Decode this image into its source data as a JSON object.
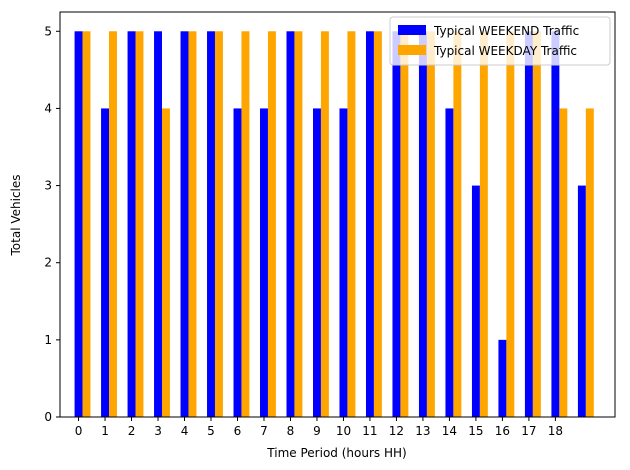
{
  "chart_data": {
    "type": "bar",
    "x_label": "Time Period (hours HH)",
    "y_label": "Total Vehicles",
    "categories": [
      "0",
      "1",
      "2",
      "3",
      "4",
      "5",
      "6",
      "7",
      "8",
      "9",
      "10",
      "11",
      "12",
      "13",
      "14",
      "15",
      "16",
      "17",
      "18",
      null
    ],
    "series": [
      {
        "name": "Typical WEEKEND Traffic",
        "color": "blue",
        "values": [
          5,
          4,
          5,
          5,
          5,
          5,
          4,
          4,
          5,
          4,
          4,
          5,
          5,
          5,
          4,
          3,
          1,
          5,
          5,
          3
        ]
      },
      {
        "name": "Typical WEEKDAY Traffic",
        "color": "orange",
        "values": [
          5,
          5,
          5,
          4,
          5,
          5,
          5,
          5,
          5,
          5,
          5,
          5,
          5,
          5,
          5,
          5,
          5,
          5,
          4,
          4
        ]
      }
    ],
    "xlim": [
      -0.7,
      20.25
    ],
    "ylim": [
      0,
      5.25
    ],
    "yticks": [
      0,
      1,
      2,
      3,
      4,
      5
    ],
    "legend": "upper right"
  }
}
